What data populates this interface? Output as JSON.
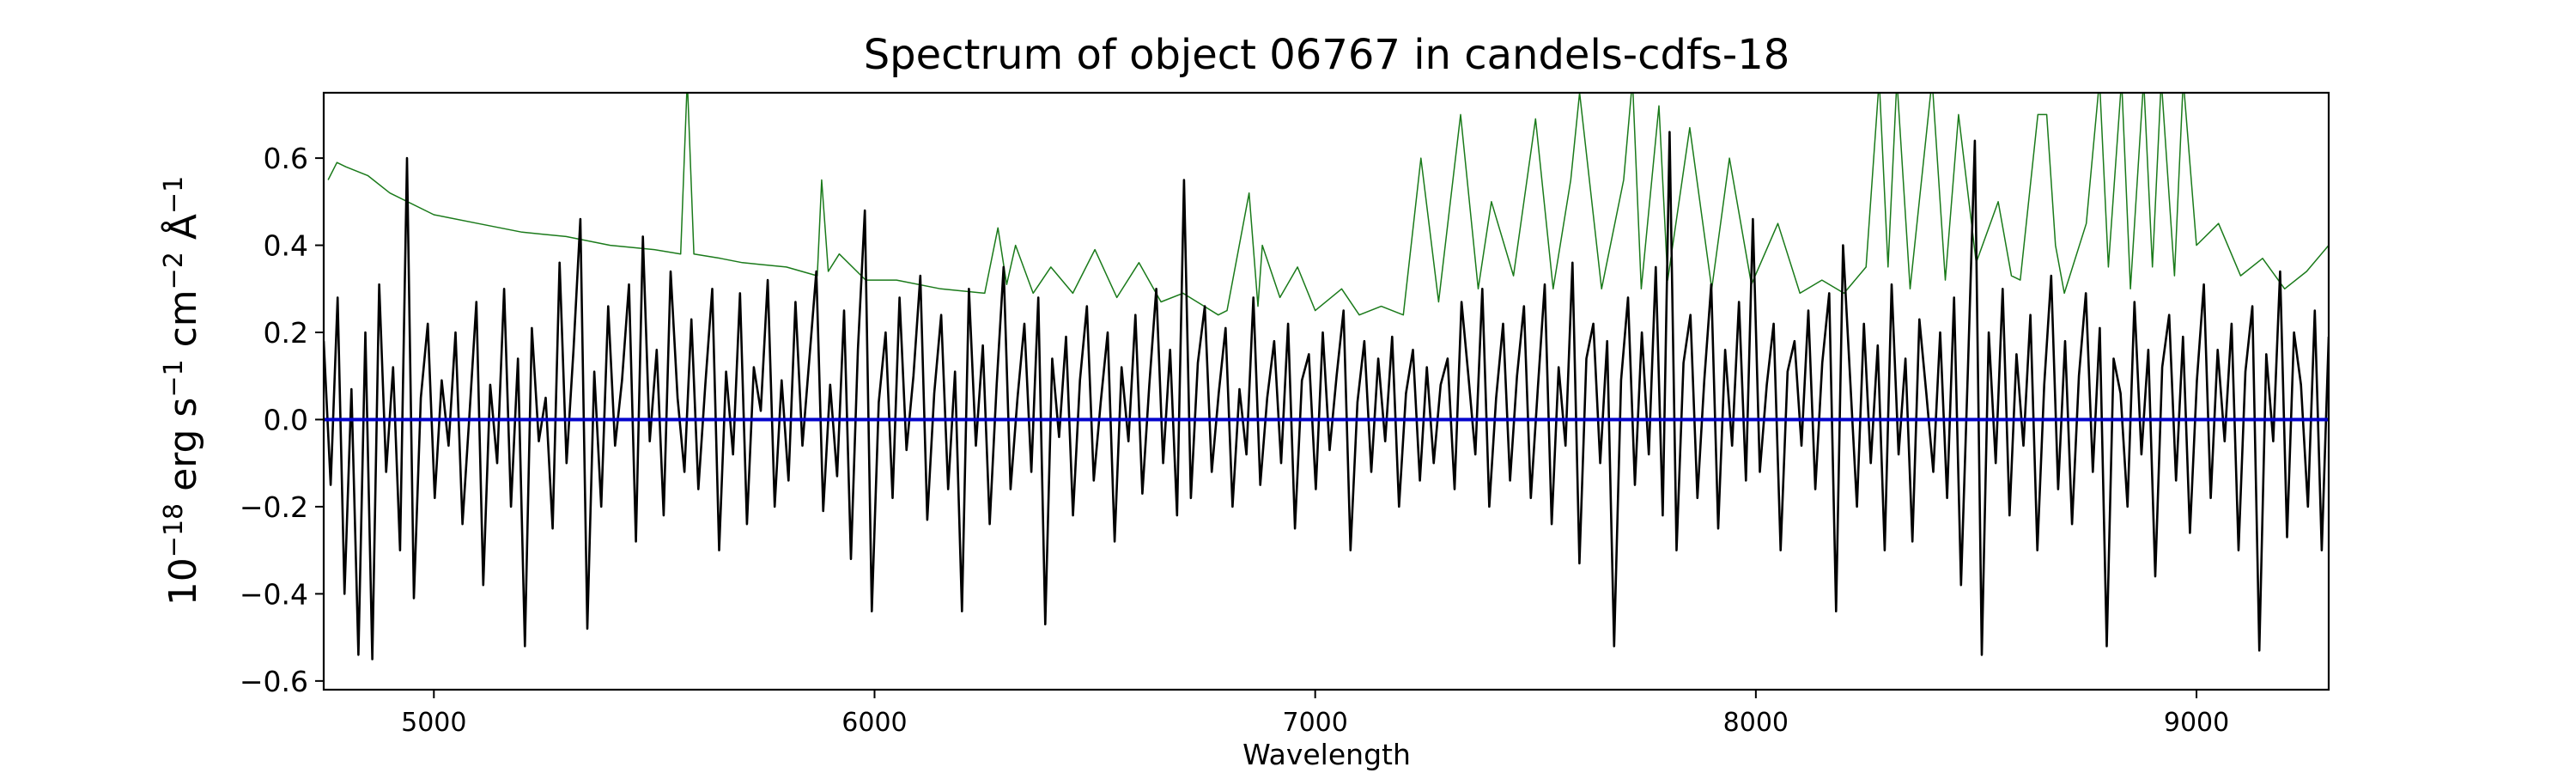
{
  "chart_data": {
    "type": "line",
    "title": "Spectrum of object 06767 in candels-cdfs-18",
    "xlabel": "Wavelength",
    "ylabel_parts": {
      "prefix": "10",
      "exp": "−18",
      "erg": " erg s",
      "s_exp": "−1",
      "cm": " cm",
      "cm_exp": "−2",
      "ang": " Å",
      "ang_exp": "−1"
    },
    "xlim": [
      4750,
      9300
    ],
    "ylim": [
      -0.62,
      0.75
    ],
    "xticks": [
      5000,
      6000,
      7000,
      8000,
      9000
    ],
    "xtick_labels": [
      "5000",
      "6000",
      "7000",
      "8000",
      "9000"
    ],
    "yticks": [
      -0.6,
      -0.4,
      -0.2,
      0.0,
      0.2,
      0.4,
      0.6
    ],
    "ytick_labels": [
      "−0.6",
      "−0.4",
      "−0.2",
      "0.0",
      "0.2",
      "0.4",
      "0.6"
    ],
    "grid": false,
    "series": [
      {
        "role": "error",
        "color": "#1a7a1a",
        "x": [
          4760,
          4780,
          4800,
          4850,
          4900,
          5000,
          5100,
          5200,
          5300,
          5400,
          5500,
          5560,
          5575,
          5590,
          5650,
          5700,
          5800,
          5870,
          5880,
          5895,
          5920,
          5980,
          6050,
          6150,
          6250,
          6280,
          6300,
          6320,
          6360,
          6400,
          6450,
          6500,
          6550,
          6600,
          6650,
          6700,
          6780,
          6800,
          6850,
          6870,
          6880,
          6920,
          6960,
          7000,
          7060,
          7100,
          7150,
          7200,
          7240,
          7280,
          7330,
          7370,
          7400,
          7450,
          7500,
          7540,
          7580,
          7600,
          7650,
          7700,
          7720,
          7740,
          7780,
          7800,
          7850,
          7900,
          7940,
          7990,
          8050,
          8100,
          8150,
          8200,
          8250,
          8280,
          8300,
          8320,
          8350,
          8400,
          8430,
          8460,
          8500,
          8550,
          8580,
          8600,
          8640,
          8660,
          8680,
          8700,
          8750,
          8780,
          8800,
          8830,
          8850,
          8880,
          8900,
          8920,
          8950,
          8970,
          9000,
          9050,
          9100,
          9150,
          9200,
          9250,
          9300
        ],
        "values": [
          0.55,
          0.59,
          0.58,
          0.56,
          0.52,
          0.47,
          0.45,
          0.43,
          0.42,
          0.4,
          0.39,
          0.38,
          0.78,
          0.38,
          0.37,
          0.36,
          0.35,
          0.33,
          0.55,
          0.34,
          0.38,
          0.32,
          0.32,
          0.3,
          0.29,
          0.44,
          0.31,
          0.4,
          0.29,
          0.35,
          0.29,
          0.39,
          0.28,
          0.36,
          0.27,
          0.29,
          0.24,
          0.25,
          0.52,
          0.26,
          0.4,
          0.28,
          0.35,
          0.25,
          0.3,
          0.24,
          0.26,
          0.24,
          0.6,
          0.27,
          0.7,
          0.3,
          0.5,
          0.33,
          0.69,
          0.3,
          0.55,
          0.75,
          0.3,
          0.55,
          0.78,
          0.3,
          0.72,
          0.32,
          0.67,
          0.3,
          0.6,
          0.31,
          0.45,
          0.29,
          0.32,
          0.29,
          0.35,
          0.78,
          0.35,
          0.78,
          0.3,
          0.78,
          0.32,
          0.7,
          0.36,
          0.5,
          0.33,
          0.32,
          0.7,
          0.7,
          0.4,
          0.29,
          0.45,
          0.78,
          0.35,
          0.78,
          0.3,
          0.78,
          0.35,
          0.78,
          0.33,
          0.78,
          0.4,
          0.45,
          0.33,
          0.37,
          0.3,
          0.34,
          0.4
        ]
      },
      {
        "role": "flux",
        "color": "#000000",
        "x_start": 4750,
        "x_end": 9300,
        "values": [
          0.18,
          -0.15,
          0.28,
          -0.4,
          0.07,
          -0.54,
          0.2,
          -0.55,
          0.31,
          -0.12,
          0.12,
          -0.3,
          0.6,
          -0.41,
          0.05,
          0.22,
          -0.18,
          0.09,
          -0.06,
          0.2,
          -0.24,
          0.01,
          0.27,
          -0.38,
          0.08,
          -0.1,
          0.3,
          -0.2,
          0.14,
          -0.52,
          0.21,
          -0.05,
          0.05,
          -0.25,
          0.36,
          -0.1,
          0.16,
          0.46,
          -0.48,
          0.11,
          -0.2,
          0.26,
          -0.06,
          0.09,
          0.31,
          -0.28,
          0.42,
          -0.05,
          0.16,
          -0.22,
          0.34,
          0.05,
          -0.12,
          0.23,
          -0.16,
          0.08,
          0.3,
          -0.3,
          0.11,
          -0.08,
          0.29,
          -0.24,
          0.12,
          0.02,
          0.32,
          -0.2,
          0.09,
          -0.14,
          0.27,
          -0.06,
          0.14,
          0.34,
          -0.21,
          0.08,
          -0.13,
          0.25,
          -0.32,
          0.16,
          0.48,
          -0.44,
          0.04,
          0.2,
          -0.18,
          0.28,
          -0.07,
          0.1,
          0.33,
          -0.23,
          0.06,
          0.24,
          -0.16,
          0.11,
          -0.44,
          0.3,
          -0.06,
          0.17,
          -0.24,
          0.08,
          0.35,
          -0.16,
          0.05,
          0.22,
          -0.12,
          0.28,
          -0.47,
          0.14,
          -0.04,
          0.19,
          -0.22,
          0.09,
          0.26,
          -0.14,
          0.04,
          0.2,
          -0.28,
          0.12,
          -0.05,
          0.24,
          -0.17,
          0.08,
          0.3,
          -0.1,
          0.16,
          -0.22,
          0.55,
          -0.18,
          0.13,
          0.26,
          -0.12,
          0.06,
          0.21,
          -0.2,
          0.07,
          -0.08,
          0.28,
          -0.15,
          0.05,
          0.18,
          -0.1,
          0.22,
          -0.25,
          0.09,
          0.15,
          -0.16,
          0.2,
          -0.07,
          0.1,
          0.25,
          -0.3,
          0.04,
          0.18,
          -0.12,
          0.14,
          -0.05,
          0.19,
          -0.2,
          0.06,
          0.16,
          -0.14,
          0.12,
          -0.1,
          0.08,
          0.14,
          -0.16,
          0.27,
          0.1,
          -0.08,
          0.3,
          -0.2,
          0.05,
          0.22,
          -0.14,
          0.1,
          0.26,
          -0.18,
          0.07,
          0.31,
          -0.24,
          0.12,
          -0.06,
          0.36,
          -0.33,
          0.14,
          0.22,
          -0.1,
          0.18,
          -0.52,
          0.09,
          0.28,
          -0.15,
          0.2,
          -0.08,
          0.35,
          -0.22,
          0.66,
          -0.3,
          0.13,
          0.24,
          -0.18,
          0.09,
          0.31,
          -0.25,
          0.16,
          -0.06,
          0.27,
          -0.14,
          0.46,
          -0.12,
          0.08,
          0.22,
          -0.3,
          0.11,
          0.18,
          -0.06,
          0.25,
          -0.16,
          0.13,
          0.29,
          -0.44,
          0.4,
          0.1,
          -0.2,
          0.22,
          -0.1,
          0.17,
          -0.3,
          0.31,
          -0.08,
          0.14,
          -0.28,
          0.23,
          0.06,
          -0.12,
          0.2,
          -0.18,
          0.28,
          -0.38,
          0.12,
          0.64,
          -0.54,
          0.2,
          -0.1,
          0.3,
          -0.22,
          0.15,
          -0.06,
          0.24,
          -0.3,
          0.08,
          0.33,
          -0.16,
          0.18,
          -0.24,
          0.1,
          0.29,
          -0.12,
          0.21,
          -0.52,
          0.14,
          0.06,
          -0.2,
          0.27,
          -0.08,
          0.16,
          -0.36,
          0.12,
          0.24,
          -0.14,
          0.19,
          -0.26,
          0.09,
          0.31,
          -0.18,
          0.16,
          -0.05,
          0.22,
          -0.3,
          0.11,
          0.26,
          -0.53,
          0.15,
          -0.05,
          0.34,
          -0.27,
          0.2,
          0.08,
          -0.2,
          0.25,
          -0.3,
          0.19
        ]
      },
      {
        "role": "continuum",
        "color": "#0000cc",
        "x": [
          4750,
          9300
        ],
        "values": [
          0.0,
          0.0
        ]
      }
    ]
  }
}
